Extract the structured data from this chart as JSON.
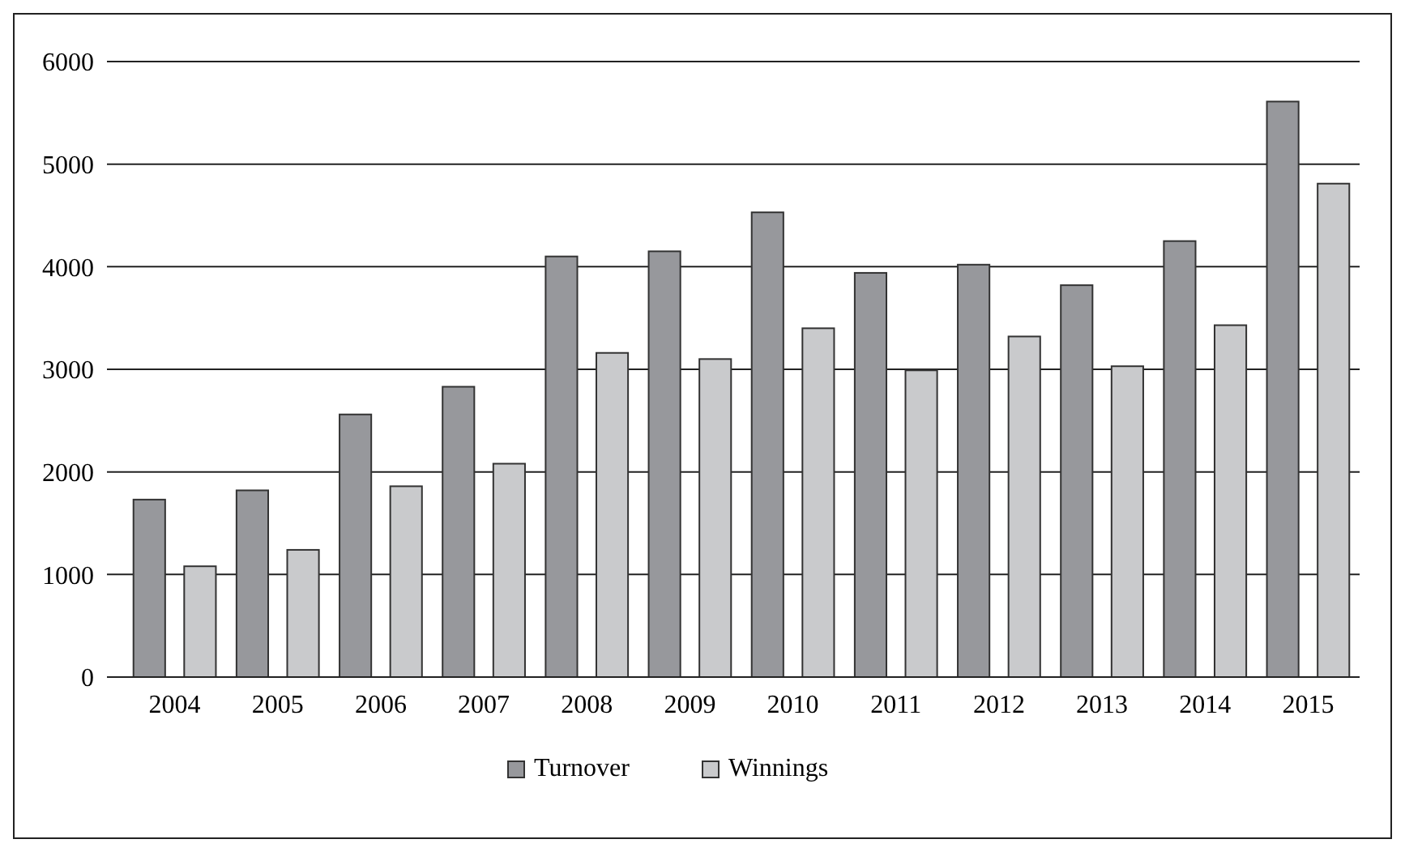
{
  "chart_data": {
    "type": "bar",
    "categories": [
      "2004",
      "2005",
      "2006",
      "2007",
      "2008",
      "2009",
      "2010",
      "2011",
      "2012",
      "2013",
      "2014",
      "2015"
    ],
    "series": [
      {
        "name": "Turnover",
        "color": "#97989c",
        "values": [
          1730,
          1820,
          2560,
          2830,
          4100,
          4150,
          4530,
          3940,
          4020,
          3820,
          4250,
          5610
        ]
      },
      {
        "name": "Winnings",
        "color": "#c9cacc",
        "values": [
          1080,
          1240,
          1860,
          2080,
          3160,
          3100,
          3400,
          2990,
          3320,
          3030,
          3430,
          4810
        ]
      }
    ],
    "ylim": [
      0,
      6000
    ],
    "yticks": [
      0,
      1000,
      2000,
      3000,
      4000,
      5000,
      6000
    ],
    "grid": "y",
    "legend": "bottom"
  }
}
